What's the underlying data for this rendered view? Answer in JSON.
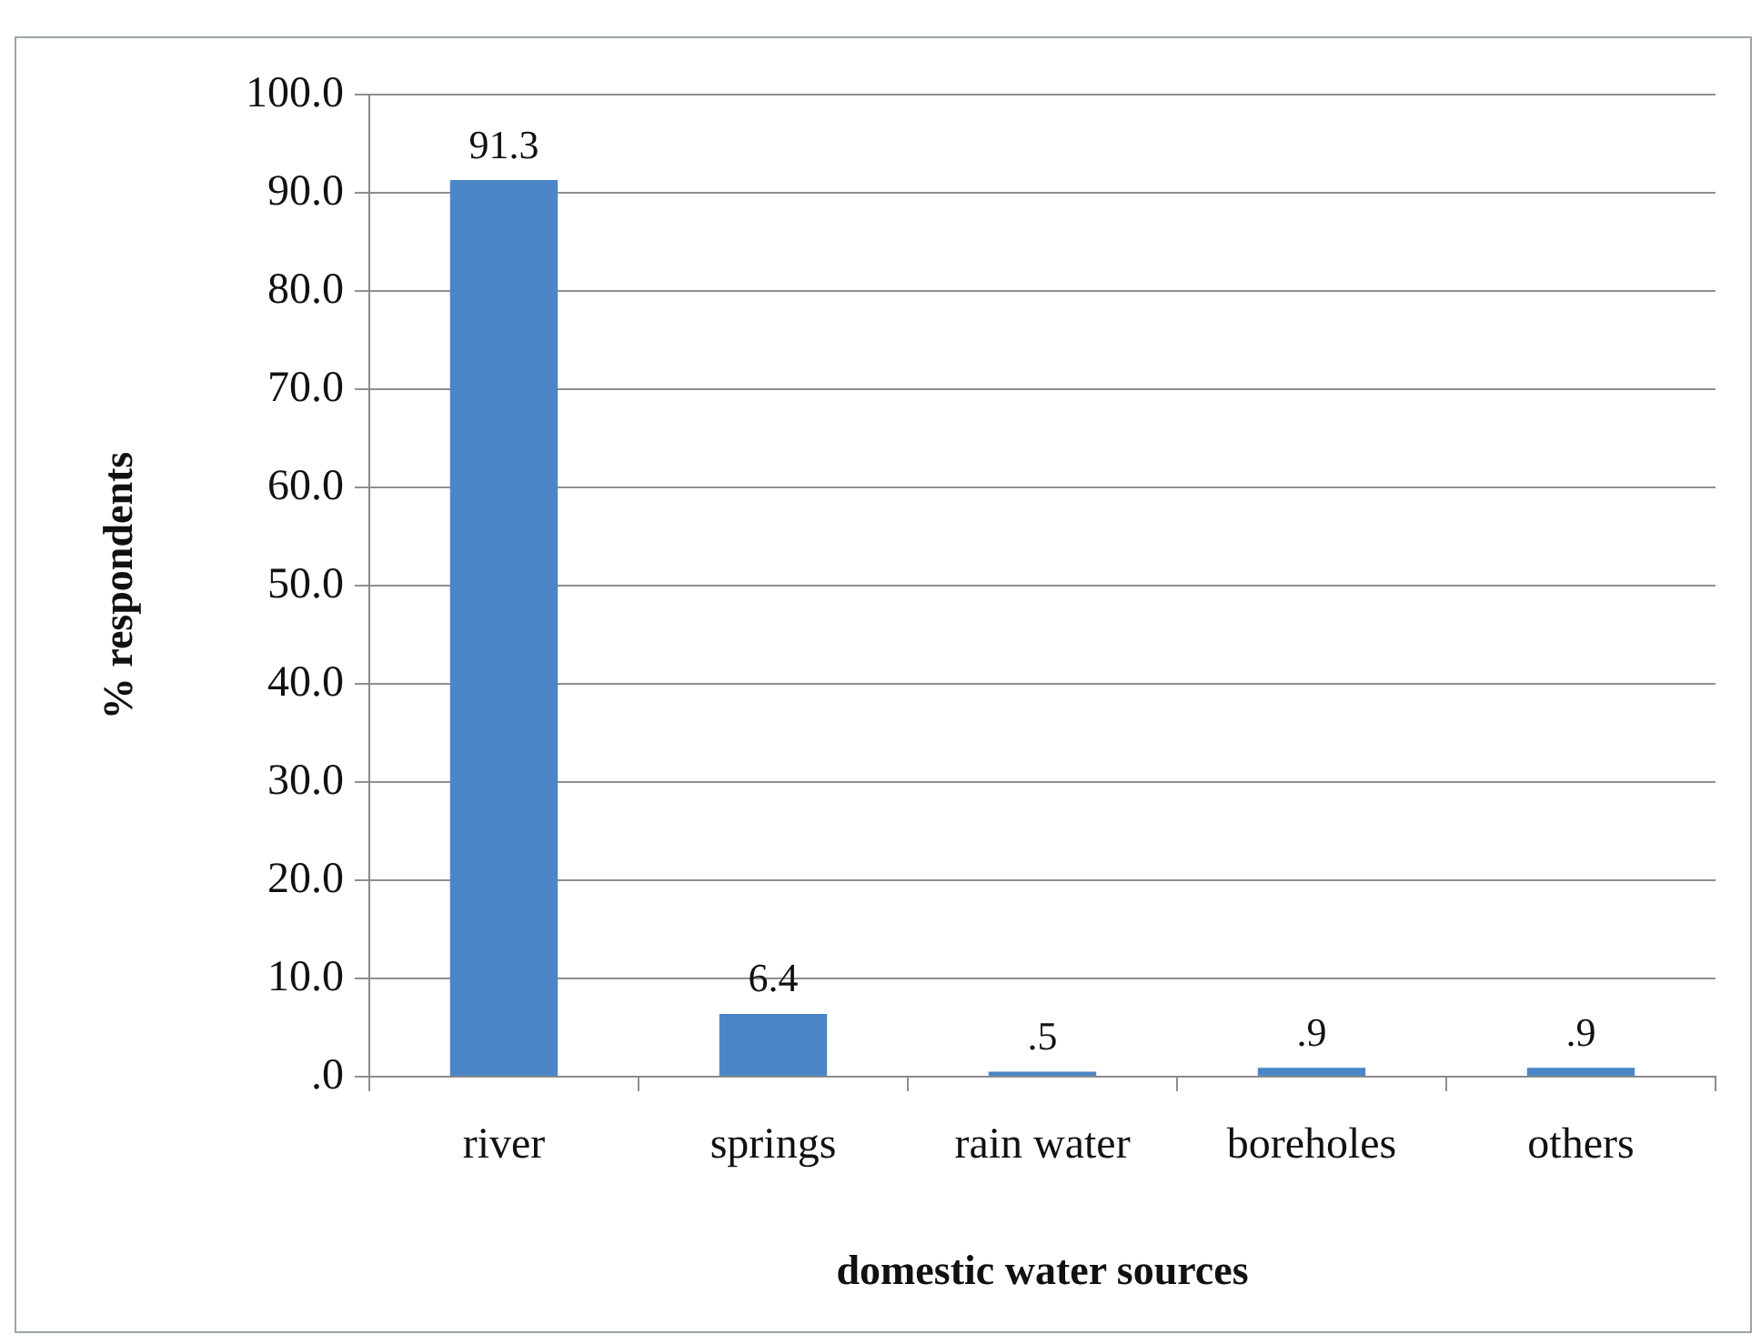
{
  "chart_data": {
    "type": "bar",
    "categories": [
      "river",
      "springs",
      "rain water",
      "boreholes",
      "others"
    ],
    "values": [
      91.3,
      6.4,
      0.5,
      0.9,
      0.9
    ],
    "color": "#4a86c8",
    "value_labels": [
      "91.3",
      "6.4",
      ".5",
      ".9",
      ".9"
    ],
    "xlabel": "domestic water sources",
    "ylabel": "% respondents",
    "ylim": [
      0,
      100
    ],
    "yticks": [
      {
        "value": 0,
        "label": ".0"
      },
      {
        "value": 10,
        "label": "10.0"
      },
      {
        "value": 20,
        "label": "20.0"
      },
      {
        "value": 30,
        "label": "30.0"
      },
      {
        "value": 40,
        "label": "40.0"
      },
      {
        "value": 50,
        "label": "50.0"
      },
      {
        "value": 60,
        "label": "60.0"
      },
      {
        "value": 70,
        "label": "70.0"
      },
      {
        "value": 80,
        "label": "80.0"
      },
      {
        "value": 90,
        "label": "90.0"
      },
      {
        "value": 100,
        "label": "100.0"
      }
    ],
    "grid": "y"
  }
}
